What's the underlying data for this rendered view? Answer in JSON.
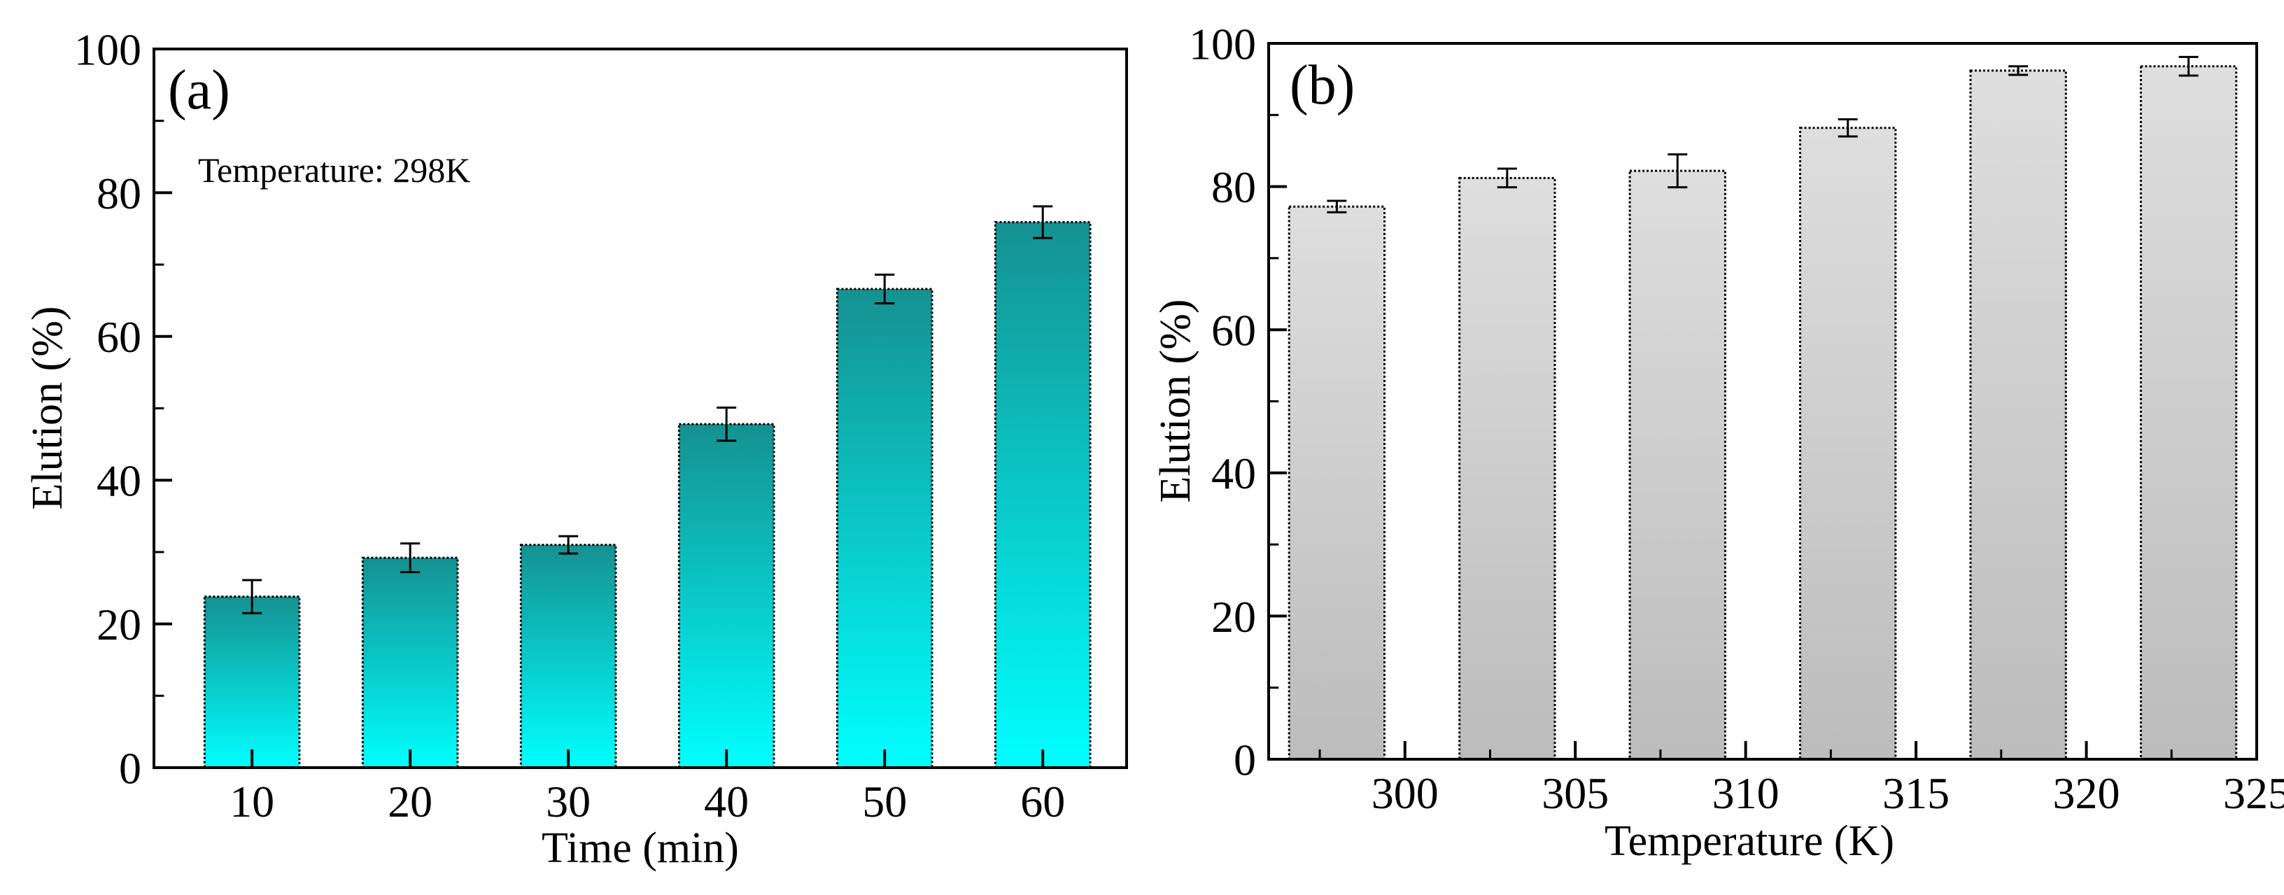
{
  "chart_data": [
    {
      "type": "bar",
      "panel_label": "(a)",
      "annotation": "Temperature: 298K",
      "xlabel": "Time (min)",
      "ylabel": "Elution  (%)",
      "categories": [
        "10",
        "20",
        "30",
        "40",
        "50",
        "60"
      ],
      "values": [
        23.8,
        29.2,
        31.0,
        47.8,
        66.6,
        75.9
      ],
      "errors": [
        2.3,
        2.0,
        1.2,
        2.3,
        2.0,
        2.2
      ],
      "ylim": [
        0,
        100
      ],
      "yticks": [
        "0",
        "20",
        "40",
        "60",
        "80",
        "100"
      ],
      "colors": {
        "bar_top": "#159191",
        "bar_bottom": "#00ffff"
      }
    },
    {
      "type": "bar",
      "panel_label": "(b)",
      "xlabel": "Temperature (K)",
      "ylabel": "Elution  (%)",
      "x": [
        298,
        303,
        308,
        313,
        318,
        323
      ],
      "values": [
        77.2,
        81.2,
        82.2,
        88.2,
        96.2,
        96.8
      ],
      "errors": [
        0.8,
        1.3,
        2.3,
        1.2,
        0.6,
        1.3
      ],
      "ylim": [
        0,
        100
      ],
      "xlim": [
        296,
        325
      ],
      "xticks": [
        "300",
        "305",
        "310",
        "315",
        "320",
        "325"
      ],
      "yticks": [
        "0",
        "20",
        "40",
        "60",
        "80",
        "100"
      ],
      "colors": {
        "bar_top": "#dedede",
        "bar_bottom": "#bcbcbc"
      }
    }
  ]
}
